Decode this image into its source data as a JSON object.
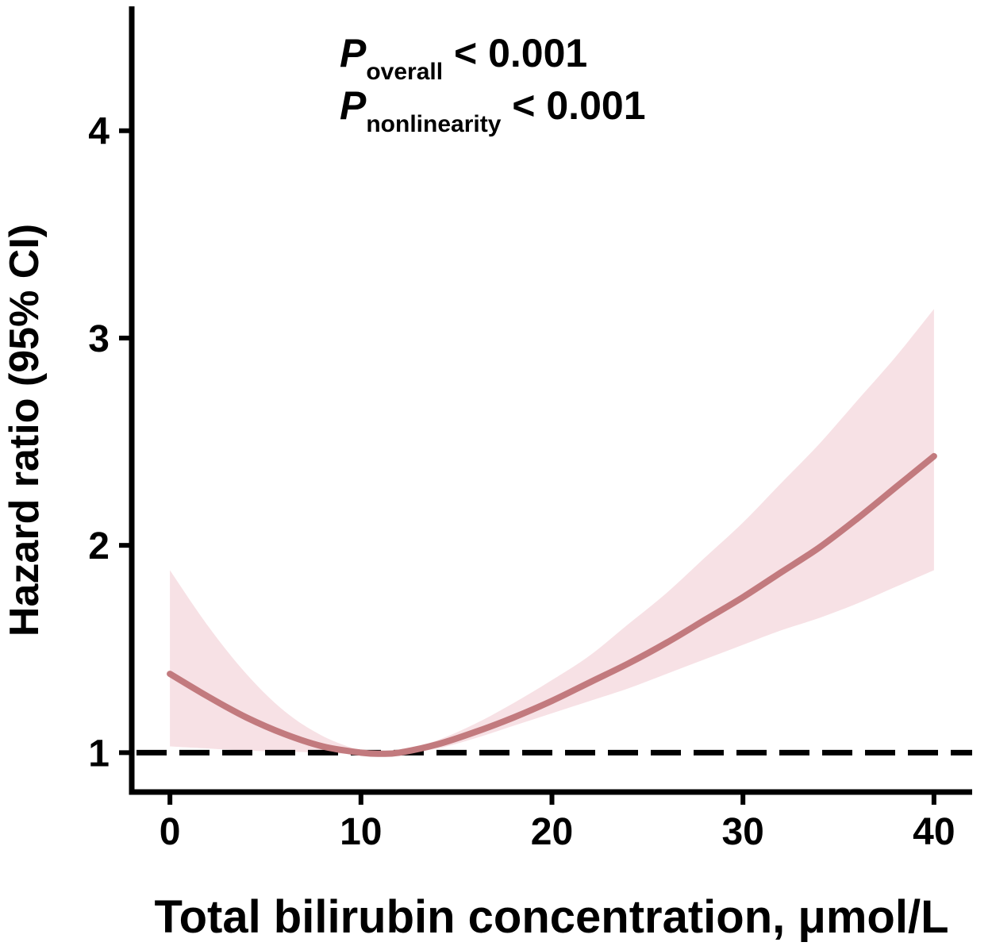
{
  "chart_data": {
    "type": "line",
    "xlabel": "Total bilirubin concentration, μmol/L",
    "ylabel": "Hazard ratio (95% CI)",
    "xlim": [
      -2,
      42
    ],
    "ylim": [
      0.81,
      4.6
    ],
    "x_ticks": [
      0,
      10,
      20,
      30,
      40
    ],
    "y_ticks": [
      1,
      2,
      3,
      4
    ],
    "reference_line": {
      "y": 1,
      "style": "dashed",
      "color": "#000000"
    },
    "annotations": [
      {
        "italic": "P",
        "sub": "overall",
        "text": " < 0.001"
      },
      {
        "italic": "P",
        "sub": "nonlinearity",
        "text": " < 0.001"
      }
    ],
    "colors": {
      "line": "#c27a7e",
      "band": "#f7e1e5",
      "axis": "#000000"
    },
    "series": [
      {
        "x": [
          0,
          2,
          4,
          6,
          8,
          10,
          11,
          12,
          14,
          16,
          18,
          20,
          22,
          24,
          26,
          28,
          30,
          32,
          34,
          36,
          38,
          40
        ],
        "y": [
          1.38,
          1.27,
          1.17,
          1.09,
          1.03,
          1.0,
          0.995,
          1.0,
          1.04,
          1.1,
          1.17,
          1.25,
          1.34,
          1.43,
          1.53,
          1.64,
          1.75,
          1.87,
          1.99,
          2.13,
          2.28,
          2.43
        ],
        "lower": [
          1.03,
          1.02,
          1.01,
          1.005,
          1.0,
          0.99,
          0.99,
          0.995,
          1.02,
          1.07,
          1.13,
          1.19,
          1.25,
          1.31,
          1.38,
          1.45,
          1.52,
          1.59,
          1.65,
          1.72,
          1.8,
          1.88
        ],
        "upper": [
          1.88,
          1.61,
          1.38,
          1.2,
          1.08,
          1.01,
          1.0,
          1.01,
          1.06,
          1.14,
          1.24,
          1.35,
          1.47,
          1.62,
          1.77,
          1.94,
          2.11,
          2.3,
          2.49,
          2.7,
          2.91,
          3.14
        ]
      }
    ]
  }
}
